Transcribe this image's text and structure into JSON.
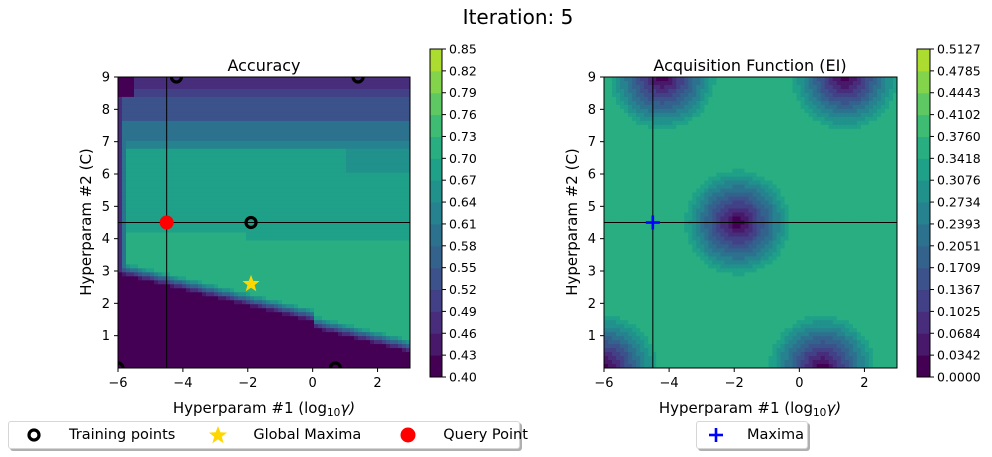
{
  "figure": {
    "title": "Iteration: 5"
  },
  "legends": {
    "left": [
      {
        "label": "Training points",
        "marker": "ring-icon",
        "color": "#000000"
      },
      {
        "label": "Global Maxima",
        "marker": "star-icon",
        "color": "#ffd700"
      },
      {
        "label": "Query Point",
        "marker": "dot-icon",
        "color": "#ff0000"
      }
    ],
    "right": [
      {
        "label": "Maxima",
        "marker": "plus-icon",
        "color": "#0000ff"
      }
    ]
  },
  "colors": {
    "viridis": [
      "#440154",
      "#471365",
      "#482475",
      "#463480",
      "#414487",
      "#3b528b",
      "#355f8d",
      "#2f6c8e",
      "#2a788e",
      "#25848e",
      "#21918c",
      "#1e9c89",
      "#22a884",
      "#2fb47c",
      "#44bf70",
      "#5ec962",
      "#7ad151",
      "#9bd93c",
      "#bddf26",
      "#dfe318",
      "#fde725"
    ],
    "training": "#000000",
    "maxima": "#ffd700",
    "query": "#ff0000",
    "acq_maxima": "#0000ff",
    "crosshair": "#000000"
  },
  "chart_data": [
    {
      "type": "heatmap",
      "title": "Accuracy",
      "xlabel": "Hyperparam #1 (log10 γ)",
      "xlabel_main": "Hyperparam #1 (log",
      "xlabel_sub": "10",
      "xlabel_tail": "γ)",
      "ylabel": "Hyperparam #2 (C)",
      "xlim": [
        -6,
        3
      ],
      "ylim": [
        0,
        9
      ],
      "xticks": [
        -6,
        -4,
        -2,
        0,
        2
      ],
      "xtick_labels": [
        "−6",
        "−4",
        "−2",
        "0",
        "2"
      ],
      "yticks": [
        1,
        2,
        3,
        4,
        5,
        6,
        7,
        8,
        9
      ],
      "ytick_labels": [
        "1",
        "2",
        "3",
        "4",
        "5",
        "6",
        "7",
        "8",
        "9"
      ],
      "colorbar": {
        "levels": [
          "0.40",
          "0.43",
          "0.46",
          "0.49",
          "0.52",
          "0.55",
          "0.58",
          "0.61",
          "0.64",
          "0.67",
          "0.70",
          "0.73",
          "0.76",
          "0.79",
          "0.82",
          "0.85"
        ],
        "range": [
          0.4,
          0.85
        ]
      },
      "contour_profile": {
        "description_rows_y": [
          0,
          1,
          2,
          2.3,
          2.6,
          3,
          3.5,
          4,
          4.5,
          5,
          6,
          7,
          7.5,
          8,
          8.5,
          9
        ],
        "left_edge_low_x": -5.8
      },
      "training_points": [
        {
          "x": -6.0,
          "y": 0.0
        },
        {
          "x": 0.7,
          "y": 0.0
        },
        {
          "x": -4.2,
          "y": 9.0
        },
        {
          "x": 1.4,
          "y": 9.0
        },
        {
          "x": -1.9,
          "y": 4.5
        }
      ],
      "global_maxima": {
        "x": -1.9,
        "y": 2.6
      },
      "query_point": {
        "x": -4.5,
        "y": 4.5
      },
      "crosshair": {
        "x": -4.5,
        "y": 4.5
      }
    },
    {
      "type": "heatmap",
      "title": "Acquisition Function (EI)",
      "xlabel": "Hyperparam #1 (log10 γ)",
      "xlabel_main": "Hyperparam #1 (log",
      "xlabel_sub": "10",
      "xlabel_tail": "γ)",
      "ylabel": "Hyperparam #2 (C)",
      "xlim": [
        -6,
        3
      ],
      "ylim": [
        0,
        9
      ],
      "xticks": [
        -6,
        -4,
        -2,
        0,
        2
      ],
      "xtick_labels": [
        "−6",
        "−4",
        "−2",
        "0",
        "2"
      ],
      "yticks": [
        1,
        2,
        3,
        4,
        5,
        6,
        7,
        8,
        9
      ],
      "ytick_labels": [
        "1",
        "2",
        "3",
        "4",
        "5",
        "6",
        "7",
        "8",
        "9"
      ],
      "colorbar": {
        "levels": [
          "0.0000",
          "0.0342",
          "0.0684",
          "0.1025",
          "0.1367",
          "0.1709",
          "0.2051",
          "0.2393",
          "0.2734",
          "0.3076",
          "0.3418",
          "0.3760",
          "0.4102",
          "0.4443",
          "0.4785",
          "0.5127"
        ],
        "range": [
          0.0,
          0.5127
        ]
      },
      "background_value": 0.36,
      "minima_at_training_points": [
        {
          "x": -6.0,
          "y": 0.0
        },
        {
          "x": 0.7,
          "y": 0.0
        },
        {
          "x": -4.2,
          "y": 9.0
        },
        {
          "x": 1.4,
          "y": 9.0
        },
        {
          "x": -1.9,
          "y": 4.5
        }
      ],
      "maxima": {
        "x": -4.5,
        "y": 4.5
      },
      "crosshair": {
        "x": -4.5,
        "y": 4.5
      }
    }
  ]
}
